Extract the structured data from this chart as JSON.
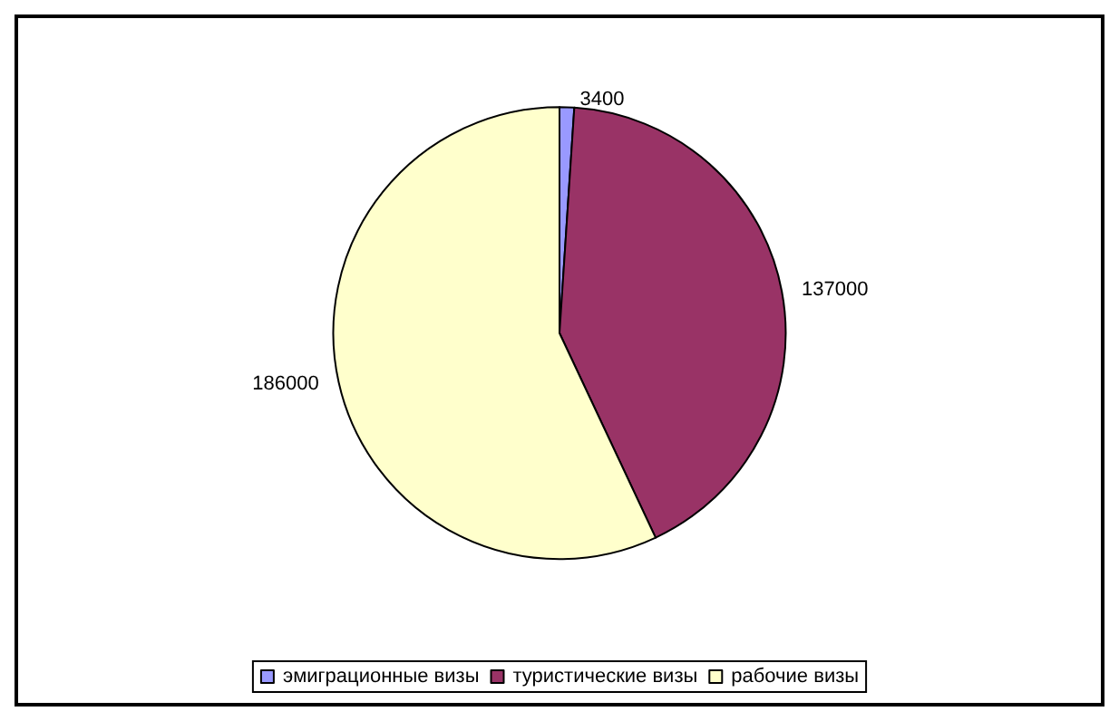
{
  "chart_data": {
    "type": "pie",
    "categories": [
      "эмиграционные визы",
      "туристические визы",
      "рабочие визы"
    ],
    "values": [
      3400,
      137000,
      186000
    ],
    "colors": [
      "#9999ff",
      "#993366",
      "#ffffcc"
    ],
    "data_labels": true,
    "legend": "bottom"
  }
}
